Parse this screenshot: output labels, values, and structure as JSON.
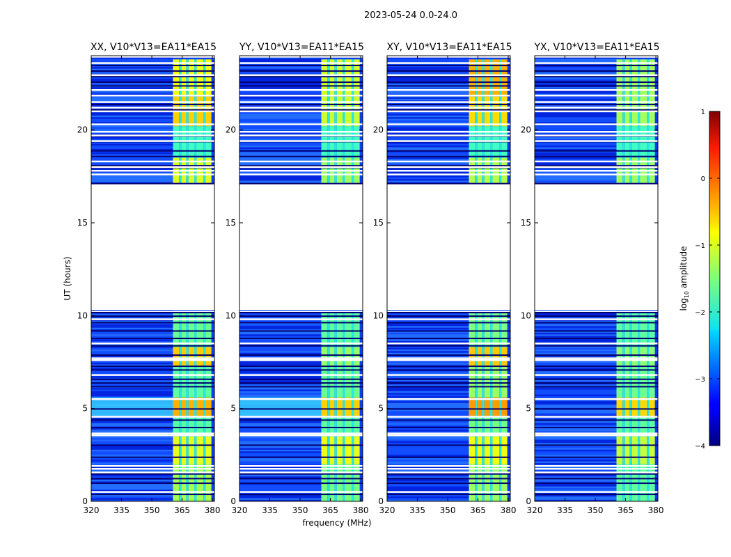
{
  "figure": {
    "suptitle": "2023-05-24 0.0-24.0"
  },
  "chart_data": {
    "type": "heatmap",
    "xlabel": "frequency (MHz)",
    "ylabel": "UT (hours)",
    "xlim": [
      320,
      381
    ],
    "ylim": [
      0,
      24
    ],
    "xticks": [
      320,
      335,
      350,
      365,
      380
    ],
    "yticks": [
      0,
      5,
      10,
      15,
      20
    ],
    "panels": [
      {
        "title": "XX, V10*V13=EA11*EA15",
        "pol": "XX"
      },
      {
        "title": "YY, V10*V13=EA11*EA15",
        "pol": "YY"
      },
      {
        "title": "XY, V10*V13=EA11*EA15",
        "pol": "XY"
      },
      {
        "title": "YX, V10*V13=EA11*EA15",
        "pol": "YX"
      }
    ],
    "data_gap_hours": [
      10.3,
      17.1
    ],
    "rfi_band_mhz": [
      360.5,
      379.5
    ],
    "colorbar": {
      "label": "log10 amplitude",
      "label_main": "log",
      "label_sub": "10",
      "label_tail": " amplitude",
      "range": [
        -4,
        1
      ],
      "ticks": [
        "1",
        "0",
        "−1",
        "−2",
        "−3",
        "−4"
      ],
      "colormap": "jet"
    }
  }
}
